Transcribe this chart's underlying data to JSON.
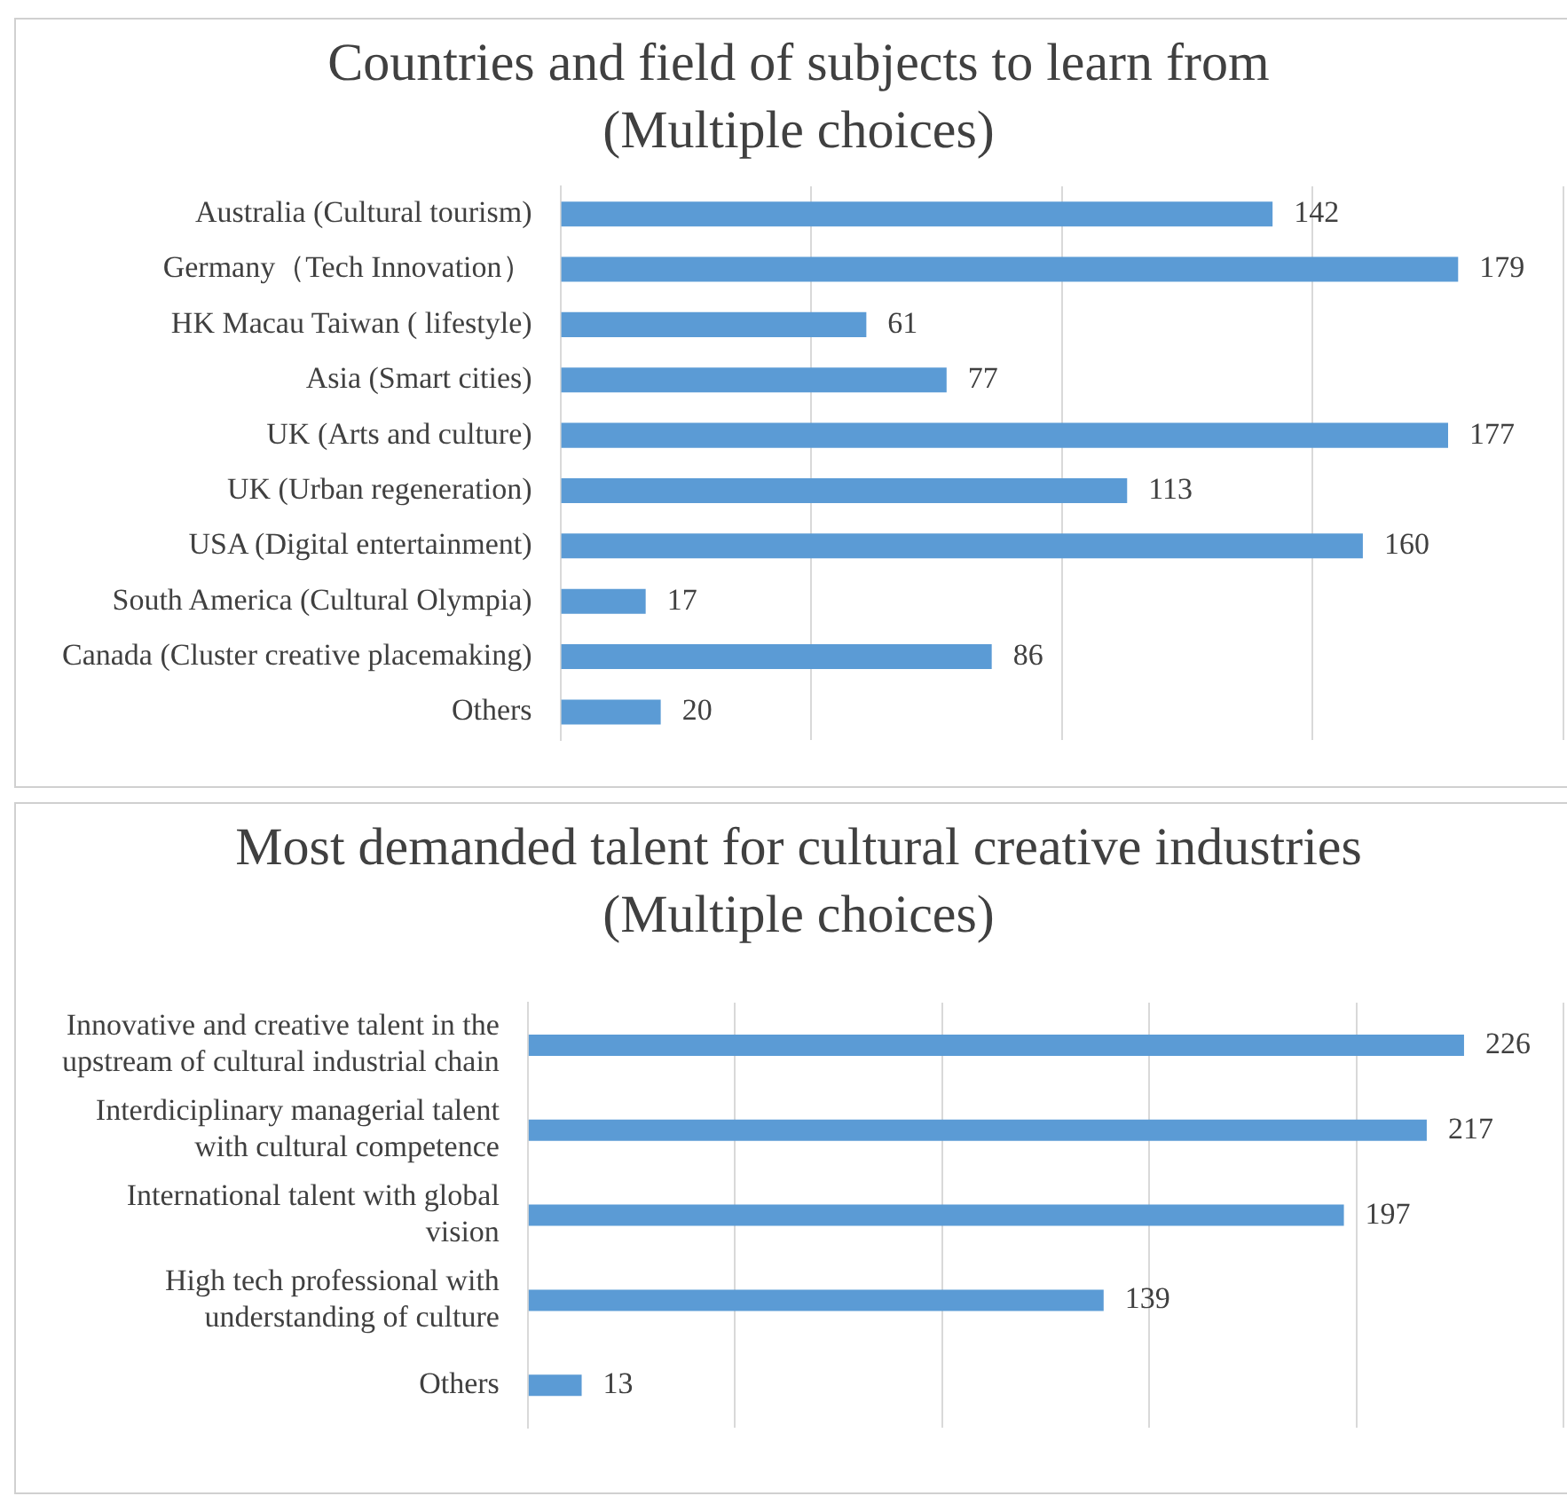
{
  "chart_data": [
    {
      "type": "bar",
      "orientation": "horizontal",
      "title": "Countries and field of subjects to learn from",
      "subtitle": "(Multiple choices)",
      "categories": [
        "Australia (Cultural tourism)",
        "Germany（Tech Innovation）",
        "HK Macau Taiwan ( lifestyle)",
        "Asia (Smart cities)",
        "UK (Arts and culture)",
        "UK (Urban regeneration)",
        "USA (Digital entertainment)",
        "South America (Cultural Olympia)",
        "Canada (Cluster creative placemaking)",
        "Others"
      ],
      "values": [
        142,
        179,
        61,
        77,
        177,
        113,
        160,
        17,
        86,
        20
      ],
      "color": "#5b9bd5",
      "data_labels": true,
      "xlim": [
        0,
        200
      ],
      "xticks": [
        {
          "value": 0,
          "label": null
        },
        {
          "value": 50,
          "label": null
        },
        {
          "value": 100,
          "label": null
        },
        {
          "value": 150,
          "label": null
        },
        {
          "value": 200,
          "label": null
        }
      ],
      "grid": "x",
      "legend": false,
      "tick_labels": "y"
    },
    {
      "type": "bar",
      "orientation": "horizontal",
      "title": "Most demanded talent for cultural creative industries",
      "subtitle": "(Multiple choices)",
      "categories": [
        "Innovative and creative talent in the upstream of cultural industrial chain",
        "Interdiciplinary managerial talent with cultural competence",
        "International talent with global vision",
        "High tech professional with understanding of culture",
        "Others"
      ],
      "values": [
        226,
        217,
        197,
        139,
        13
      ],
      "color": "#5b9bd5",
      "data_labels": true,
      "xlim": [
        0,
        250
      ],
      "xticks": [
        {
          "value": 0,
          "label": null
        },
        {
          "value": 50,
          "label": null
        },
        {
          "value": 100,
          "label": null
        },
        {
          "value": 150,
          "label": null
        },
        {
          "value": 200,
          "label": null
        },
        {
          "value": 250,
          "label": null
        }
      ],
      "grid": "x",
      "legend": false,
      "tick_labels": "y"
    }
  ]
}
